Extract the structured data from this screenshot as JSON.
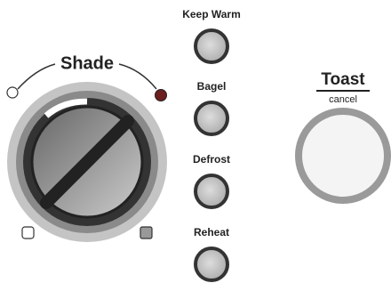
{
  "shade_dial": {
    "label": "Shade"
  },
  "buttons": [
    {
      "label": "Keep Warm"
    },
    {
      "label": "Bagel"
    },
    {
      "label": "Defrost"
    },
    {
      "label": "Reheat"
    }
  ],
  "toast_button": {
    "label": "Toast",
    "sublabel": "cancel"
  }
}
